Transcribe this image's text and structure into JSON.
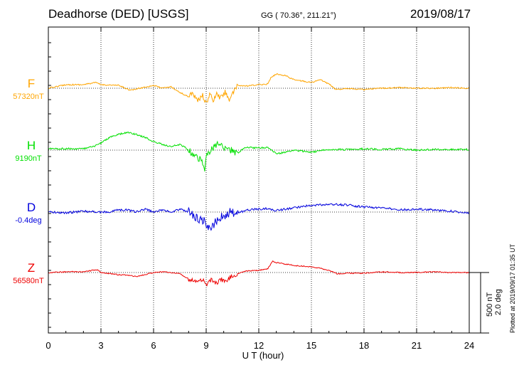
{
  "header": {
    "title": "Deadhorse (DED)  [USGS]",
    "coords": "GG ( 70.36°, 211.21°)",
    "date": "2019/08/17"
  },
  "chart_data": {
    "type": "line",
    "xlabel": "U T (hour)",
    "x_ticks": [
      "0",
      "3",
      "6",
      "9",
      "12",
      "15",
      "18",
      "21",
      "24"
    ],
    "xlim": [
      0,
      24
    ],
    "scale_labels": [
      "500 nT",
      "2.0 deg"
    ],
    "plotted_at": "Plotted at 2019/09/17 01:35 UT",
    "series": [
      {
        "name": "F",
        "baseline_label": "57320nT",
        "color": "#ffa500",
        "points": [
          [
            0,
            0
          ],
          [
            1,
            -5
          ],
          [
            2,
            -5
          ],
          [
            2.7,
            -8
          ],
          [
            3,
            -5
          ],
          [
            4,
            -4
          ],
          [
            4.7,
            3
          ],
          [
            5.2,
            0
          ],
          [
            6,
            -4
          ],
          [
            6.5,
            0
          ],
          [
            7,
            -2
          ],
          [
            7.5,
            6
          ],
          [
            8,
            12
          ],
          [
            8.2,
            5
          ],
          [
            8.5,
            18
          ],
          [
            8.8,
            10
          ],
          [
            9,
            22
          ],
          [
            9.2,
            8
          ],
          [
            9.4,
            18
          ],
          [
            9.6,
            8
          ],
          [
            9.8,
            14
          ],
          [
            10.1,
            5
          ],
          [
            10.3,
            16
          ],
          [
            10.6,
            5
          ],
          [
            10.8,
            -4
          ],
          [
            11.3,
            -3
          ],
          [
            12,
            -5
          ],
          [
            12.5,
            -6
          ],
          [
            12.7,
            -15
          ],
          [
            13,
            -20
          ],
          [
            13.5,
            -18
          ],
          [
            14,
            -12
          ],
          [
            14.5,
            -10
          ],
          [
            15,
            -8
          ],
          [
            15.5,
            -12
          ],
          [
            16,
            -6
          ],
          [
            16.4,
            2
          ],
          [
            17,
            0
          ],
          [
            18,
            2
          ],
          [
            19,
            0
          ],
          [
            20,
            -1
          ],
          [
            21,
            0
          ],
          [
            22,
            0
          ],
          [
            23,
            -1
          ],
          [
            24,
            0
          ]
        ],
        "noise": 1.2
      },
      {
        "name": "H",
        "baseline_label": "9190nT",
        "color": "#00e000",
        "points": [
          [
            0,
            -2
          ],
          [
            1,
            -2
          ],
          [
            2,
            -2
          ],
          [
            2.6,
            -5
          ],
          [
            3,
            -10
          ],
          [
            3.5,
            -18
          ],
          [
            4,
            -22
          ],
          [
            4.5,
            -25
          ],
          [
            5,
            -22
          ],
          [
            5.5,
            -18
          ],
          [
            6,
            -12
          ],
          [
            6.5,
            -8
          ],
          [
            7,
            -5
          ],
          [
            7.5,
            -8
          ],
          [
            7.8,
            -4
          ],
          [
            8.2,
            5
          ],
          [
            8.5,
            10
          ],
          [
            8.8,
            16
          ],
          [
            8.9,
            30
          ],
          [
            9,
            10
          ],
          [
            9.3,
            0
          ],
          [
            9.6,
            -8
          ],
          [
            10,
            -5
          ],
          [
            10.4,
            0
          ],
          [
            10.8,
            5
          ],
          [
            11.2,
            -4
          ],
          [
            12,
            -3
          ],
          [
            12.5,
            -4
          ],
          [
            13,
            5
          ],
          [
            13.5,
            3
          ],
          [
            14,
            0
          ],
          [
            15,
            3
          ],
          [
            16,
            -1
          ],
          [
            17,
            -1
          ],
          [
            18,
            -2
          ],
          [
            19,
            -1
          ],
          [
            20,
            -2
          ],
          [
            21,
            0
          ],
          [
            22,
            -1
          ],
          [
            24,
            -1
          ]
        ],
        "noise": 1.6
      },
      {
        "name": "D",
        "baseline_label": "-0.4deg",
        "color": "#0000dd",
        "points": [
          [
            0,
            0
          ],
          [
            1,
            1
          ],
          [
            2,
            -1
          ],
          [
            3,
            0
          ],
          [
            3.5,
            0
          ],
          [
            4,
            -3
          ],
          [
            4.5,
            -3
          ],
          [
            5,
            0
          ],
          [
            5.5,
            -4
          ],
          [
            6,
            0
          ],
          [
            6.5,
            -3
          ],
          [
            7,
            0
          ],
          [
            7.5,
            -4
          ],
          [
            8,
            0
          ],
          [
            8.3,
            5
          ],
          [
            8.6,
            10
          ],
          [
            8.9,
            12
          ],
          [
            9.1,
            25
          ],
          [
            9.3,
            22
          ],
          [
            9.6,
            12
          ],
          [
            10,
            5
          ],
          [
            10.4,
            0
          ],
          [
            10.8,
            2
          ],
          [
            11.3,
            -3
          ],
          [
            12,
            -4
          ],
          [
            12.5,
            -5
          ],
          [
            13,
            -2
          ],
          [
            13.5,
            -4
          ],
          [
            14,
            -6
          ],
          [
            14.5,
            -8
          ],
          [
            15,
            -9
          ],
          [
            16,
            -11
          ],
          [
            17,
            -10
          ],
          [
            18,
            -7
          ],
          [
            19,
            -6
          ],
          [
            20,
            -3
          ],
          [
            21,
            -4
          ],
          [
            22,
            -3
          ],
          [
            23,
            -1
          ],
          [
            24,
            1
          ]
        ],
        "noise": 2.0
      },
      {
        "name": "Z",
        "baseline_label": "56580nT",
        "color": "#ee0000",
        "points": [
          [
            0,
            0
          ],
          [
            1,
            -1
          ],
          [
            2,
            -1
          ],
          [
            2.8,
            -4
          ],
          [
            3,
            0
          ],
          [
            4,
            3
          ],
          [
            4.7,
            4
          ],
          [
            5,
            6
          ],
          [
            5.5,
            3
          ],
          [
            6,
            0
          ],
          [
            6.5,
            -1
          ],
          [
            7,
            0
          ],
          [
            7.5,
            2
          ],
          [
            8,
            9
          ],
          [
            8.4,
            13
          ],
          [
            8.8,
            10
          ],
          [
            9,
            18
          ],
          [
            9.3,
            10
          ],
          [
            9.6,
            16
          ],
          [
            9.8,
            8
          ],
          [
            10.1,
            14
          ],
          [
            10.4,
            6
          ],
          [
            10.8,
            2
          ],
          [
            11.2,
            -2
          ],
          [
            12,
            -3
          ],
          [
            12.5,
            -5
          ],
          [
            12.8,
            -16
          ],
          [
            13,
            -14
          ],
          [
            13.5,
            -12
          ],
          [
            14,
            -10
          ],
          [
            14.5,
            -9
          ],
          [
            15,
            -8
          ],
          [
            15.5,
            -6
          ],
          [
            16,
            -3
          ],
          [
            16.5,
            2
          ],
          [
            17,
            1
          ],
          [
            18,
            1
          ],
          [
            19,
            -1
          ],
          [
            20,
            0
          ],
          [
            21,
            0
          ],
          [
            22,
            -1
          ],
          [
            23,
            0
          ],
          [
            24,
            0
          ]
        ],
        "noise": 1.0
      }
    ]
  }
}
